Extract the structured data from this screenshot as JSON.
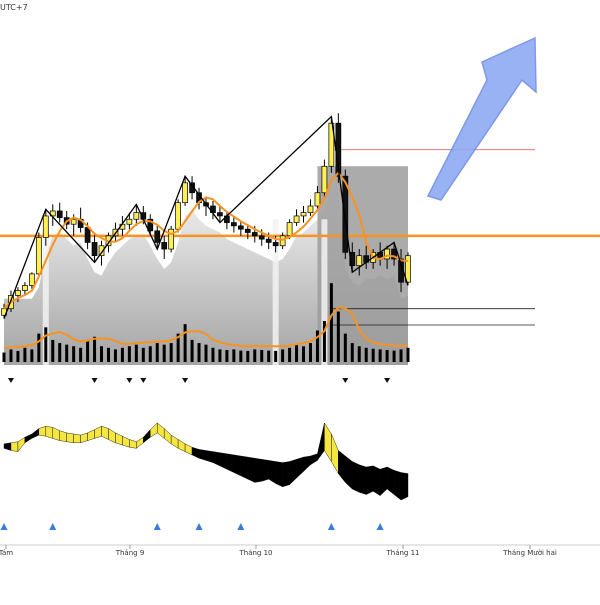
{
  "header": {
    "timezone_label": "UTC+7"
  },
  "time_axis": {
    "labels": [
      "Tám",
      "Tháng 9",
      "Tháng 10",
      "Tháng 11",
      "Tháng Mười hai"
    ]
  },
  "colors": {
    "price_line": "#f7931e",
    "zigzag": "#000000",
    "bull_candle": "#ffee55",
    "bear_candle": "#111111",
    "arrow": "#8faaf2",
    "signal_up": "#3b7be0",
    "signal_down": "#111111",
    "oscillator_pos": "#f5e642",
    "oscillator_neg": "#000000",
    "upper_level": "#e06666"
  },
  "icons": {
    "trend_arrow": "arrow-up-right-icon",
    "up_signal": "triangle-up-icon",
    "down_signal": "triangle-down-icon"
  },
  "chart_data": {
    "type": "candlestick",
    "title": "",
    "candles": [
      [
        30,
        37,
        28,
        34
      ],
      [
        34,
        45,
        32,
        42
      ],
      [
        42,
        47,
        38,
        45
      ],
      [
        45,
        50,
        42,
        48
      ],
      [
        48,
        56,
        46,
        55
      ],
      [
        55,
        80,
        53,
        77
      ],
      [
        77,
        94,
        72,
        90
      ],
      [
        90,
        97,
        84,
        93
      ],
      [
        93,
        98,
        86,
        89
      ],
      [
        89,
        93,
        82,
        85
      ],
      [
        85,
        91,
        78,
        88
      ],
      [
        88,
        95,
        80,
        83
      ],
      [
        83,
        86,
        70,
        74
      ],
      [
        74,
        80,
        62,
        66
      ],
      [
        66,
        75,
        60,
        72
      ],
      [
        72,
        80,
        68,
        78
      ],
      [
        78,
        86,
        74,
        82
      ],
      [
        82,
        90,
        78,
        85
      ],
      [
        85,
        92,
        82,
        88
      ],
      [
        88,
        97,
        84,
        92
      ],
      [
        92,
        96,
        85,
        88
      ],
      [
        88,
        91,
        78,
        81
      ],
      [
        81,
        84,
        70,
        74
      ],
      [
        74,
        78,
        64,
        70
      ],
      [
        70,
        84,
        68,
        82
      ],
      [
        82,
        100,
        80,
        98
      ],
      [
        98,
        114,
        96,
        110
      ],
      [
        110,
        114,
        100,
        104
      ],
      [
        104,
        107,
        94,
        98
      ],
      [
        98,
        101,
        90,
        96
      ],
      [
        96,
        99,
        88,
        92
      ],
      [
        92,
        96,
        86,
        90
      ],
      [
        90,
        93,
        82,
        86
      ],
      [
        86,
        90,
        80,
        84
      ],
      [
        84,
        87,
        78,
        82
      ],
      [
        82,
        85,
        76,
        80
      ],
      [
        80,
        84,
        74,
        78
      ],
      [
        78,
        82,
        72,
        76
      ],
      [
        76,
        80,
        70,
        74
      ],
      [
        74,
        78,
        68,
        72
      ],
      [
        72,
        80,
        70,
        78
      ],
      [
        78,
        88,
        76,
        86
      ],
      [
        86,
        94,
        84,
        90
      ],
      [
        90,
        96,
        86,
        92
      ],
      [
        92,
        100,
        90,
        96
      ],
      [
        96,
        108,
        94,
        104
      ],
      [
        104,
        124,
        100,
        120
      ],
      [
        120,
        150,
        116,
        146
      ],
      [
        146,
        152,
        110,
        114
      ],
      [
        114,
        118,
        64,
        68
      ],
      [
        68,
        74,
        56,
        60
      ],
      [
        60,
        70,
        54,
        66
      ],
      [
        66,
        72,
        58,
        62
      ],
      [
        62,
        70,
        58,
        68
      ],
      [
        68,
        74,
        60,
        64
      ],
      [
        64,
        72,
        58,
        70
      ],
      [
        70,
        74,
        60,
        64
      ],
      [
        64,
        70,
        44,
        50
      ],
      [
        50,
        68,
        48,
        66
      ]
    ],
    "volume": [
      30,
      40,
      35,
      45,
      40,
      90,
      110,
      70,
      60,
      55,
      50,
      45,
      70,
      80,
      50,
      45,
      40,
      45,
      50,
      55,
      45,
      50,
      60,
      55,
      60,
      90,
      120,
      70,
      60,
      55,
      45,
      40,
      38,
      40,
      36,
      35,
      40,
      38,
      36,
      35,
      40,
      45,
      55,
      50,
      60,
      100,
      130,
      250,
      160,
      90,
      60,
      50,
      45,
      42,
      40,
      38,
      36,
      40,
      45
    ],
    "price_ref_level": 78,
    "upper_level": 130,
    "lower_levels": [
      34,
      0
    ],
    "oscillator": [
      [
        2,
        -6
      ],
      [
        4,
        -10
      ],
      [
        6,
        -12
      ],
      [
        14,
        4
      ],
      [
        20,
        12
      ],
      [
        30,
        18
      ],
      [
        34,
        16
      ],
      [
        32,
        12
      ],
      [
        26,
        8
      ],
      [
        22,
        6
      ],
      [
        20,
        4
      ],
      [
        18,
        4
      ],
      [
        22,
        8
      ],
      [
        28,
        12
      ],
      [
        34,
        16
      ],
      [
        30,
        10
      ],
      [
        22,
        4
      ],
      [
        16,
        0
      ],
      [
        10,
        -4
      ],
      [
        6,
        -6
      ],
      [
        14,
        4
      ],
      [
        28,
        14
      ],
      [
        40,
        22
      ],
      [
        30,
        12
      ],
      [
        18,
        2
      ],
      [
        10,
        -6
      ],
      [
        2,
        -12
      ],
      [
        -4,
        -18
      ],
      [
        -8,
        -24
      ],
      [
        -10,
        -28
      ],
      [
        -12,
        -32
      ],
      [
        -14,
        -38
      ],
      [
        -16,
        -44
      ],
      [
        -18,
        -50
      ],
      [
        -20,
        -56
      ],
      [
        -22,
        -62
      ],
      [
        -24,
        -68
      ],
      [
        -26,
        -66
      ],
      [
        -28,
        -62
      ],
      [
        -30,
        -70
      ],
      [
        -32,
        -76
      ],
      [
        -30,
        -72
      ],
      [
        -26,
        -60
      ],
      [
        -22,
        -48
      ],
      [
        -20,
        -36
      ],
      [
        -16,
        -28
      ],
      [
        40,
        -10
      ],
      [
        20,
        -30
      ],
      [
        -10,
        -52
      ],
      [
        -20,
        -68
      ],
      [
        -30,
        -80
      ],
      [
        -36,
        -86
      ],
      [
        -40,
        -90
      ],
      [
        -38,
        -84
      ],
      [
        -44,
        -92
      ],
      [
        -40,
        -80
      ],
      [
        -46,
        -90
      ],
      [
        -50,
        -100
      ],
      [
        -52,
        -94
      ]
    ],
    "up_signal_indices": [
      0,
      7,
      22,
      28,
      34,
      47,
      54
    ],
    "down_signal_indices": [
      1,
      13,
      18,
      20,
      26,
      49,
      55
    ]
  }
}
